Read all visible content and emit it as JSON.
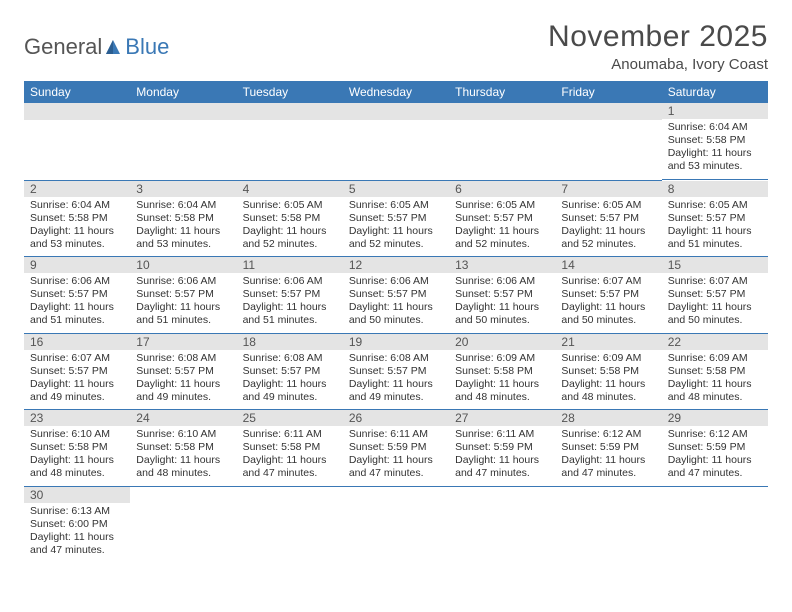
{
  "logo": {
    "textGeneral": "General",
    "textBlue": "Blue"
  },
  "title": "November 2025",
  "location": "Anoumaba, Ivory Coast",
  "dayHeaders": [
    "Sunday",
    "Monday",
    "Tuesday",
    "Wednesday",
    "Thursday",
    "Friday",
    "Saturday"
  ],
  "colors": {
    "headerBg": "#3a78b5",
    "headerText": "#ffffff",
    "dayNumBg": "#e4e4e4",
    "cellRule": "#3a78b5",
    "bodyText": "#333333",
    "titleText": "#4a4a4a"
  },
  "weeks": [
    [
      null,
      null,
      null,
      null,
      null,
      null,
      {
        "n": "1",
        "sr": "Sunrise: 6:04 AM",
        "ss": "Sunset: 5:58 PM",
        "d1": "Daylight: 11 hours",
        "d2": "and 53 minutes."
      }
    ],
    [
      {
        "n": "2",
        "sr": "Sunrise: 6:04 AM",
        "ss": "Sunset: 5:58 PM",
        "d1": "Daylight: 11 hours",
        "d2": "and 53 minutes."
      },
      {
        "n": "3",
        "sr": "Sunrise: 6:04 AM",
        "ss": "Sunset: 5:58 PM",
        "d1": "Daylight: 11 hours",
        "d2": "and 53 minutes."
      },
      {
        "n": "4",
        "sr": "Sunrise: 6:05 AM",
        "ss": "Sunset: 5:58 PM",
        "d1": "Daylight: 11 hours",
        "d2": "and 52 minutes."
      },
      {
        "n": "5",
        "sr": "Sunrise: 6:05 AM",
        "ss": "Sunset: 5:57 PM",
        "d1": "Daylight: 11 hours",
        "d2": "and 52 minutes."
      },
      {
        "n": "6",
        "sr": "Sunrise: 6:05 AM",
        "ss": "Sunset: 5:57 PM",
        "d1": "Daylight: 11 hours",
        "d2": "and 52 minutes."
      },
      {
        "n": "7",
        "sr": "Sunrise: 6:05 AM",
        "ss": "Sunset: 5:57 PM",
        "d1": "Daylight: 11 hours",
        "d2": "and 52 minutes."
      },
      {
        "n": "8",
        "sr": "Sunrise: 6:05 AM",
        "ss": "Sunset: 5:57 PM",
        "d1": "Daylight: 11 hours",
        "d2": "and 51 minutes."
      }
    ],
    [
      {
        "n": "9",
        "sr": "Sunrise: 6:06 AM",
        "ss": "Sunset: 5:57 PM",
        "d1": "Daylight: 11 hours",
        "d2": "and 51 minutes."
      },
      {
        "n": "10",
        "sr": "Sunrise: 6:06 AM",
        "ss": "Sunset: 5:57 PM",
        "d1": "Daylight: 11 hours",
        "d2": "and 51 minutes."
      },
      {
        "n": "11",
        "sr": "Sunrise: 6:06 AM",
        "ss": "Sunset: 5:57 PM",
        "d1": "Daylight: 11 hours",
        "d2": "and 51 minutes."
      },
      {
        "n": "12",
        "sr": "Sunrise: 6:06 AM",
        "ss": "Sunset: 5:57 PM",
        "d1": "Daylight: 11 hours",
        "d2": "and 50 minutes."
      },
      {
        "n": "13",
        "sr": "Sunrise: 6:06 AM",
        "ss": "Sunset: 5:57 PM",
        "d1": "Daylight: 11 hours",
        "d2": "and 50 minutes."
      },
      {
        "n": "14",
        "sr": "Sunrise: 6:07 AM",
        "ss": "Sunset: 5:57 PM",
        "d1": "Daylight: 11 hours",
        "d2": "and 50 minutes."
      },
      {
        "n": "15",
        "sr": "Sunrise: 6:07 AM",
        "ss": "Sunset: 5:57 PM",
        "d1": "Daylight: 11 hours",
        "d2": "and 50 minutes."
      }
    ],
    [
      {
        "n": "16",
        "sr": "Sunrise: 6:07 AM",
        "ss": "Sunset: 5:57 PM",
        "d1": "Daylight: 11 hours",
        "d2": "and 49 minutes."
      },
      {
        "n": "17",
        "sr": "Sunrise: 6:08 AM",
        "ss": "Sunset: 5:57 PM",
        "d1": "Daylight: 11 hours",
        "d2": "and 49 minutes."
      },
      {
        "n": "18",
        "sr": "Sunrise: 6:08 AM",
        "ss": "Sunset: 5:57 PM",
        "d1": "Daylight: 11 hours",
        "d2": "and 49 minutes."
      },
      {
        "n": "19",
        "sr": "Sunrise: 6:08 AM",
        "ss": "Sunset: 5:57 PM",
        "d1": "Daylight: 11 hours",
        "d2": "and 49 minutes."
      },
      {
        "n": "20",
        "sr": "Sunrise: 6:09 AM",
        "ss": "Sunset: 5:58 PM",
        "d1": "Daylight: 11 hours",
        "d2": "and 48 minutes."
      },
      {
        "n": "21",
        "sr": "Sunrise: 6:09 AM",
        "ss": "Sunset: 5:58 PM",
        "d1": "Daylight: 11 hours",
        "d2": "and 48 minutes."
      },
      {
        "n": "22",
        "sr": "Sunrise: 6:09 AM",
        "ss": "Sunset: 5:58 PM",
        "d1": "Daylight: 11 hours",
        "d2": "and 48 minutes."
      }
    ],
    [
      {
        "n": "23",
        "sr": "Sunrise: 6:10 AM",
        "ss": "Sunset: 5:58 PM",
        "d1": "Daylight: 11 hours",
        "d2": "and 48 minutes."
      },
      {
        "n": "24",
        "sr": "Sunrise: 6:10 AM",
        "ss": "Sunset: 5:58 PM",
        "d1": "Daylight: 11 hours",
        "d2": "and 48 minutes."
      },
      {
        "n": "25",
        "sr": "Sunrise: 6:11 AM",
        "ss": "Sunset: 5:58 PM",
        "d1": "Daylight: 11 hours",
        "d2": "and 47 minutes."
      },
      {
        "n": "26",
        "sr": "Sunrise: 6:11 AM",
        "ss": "Sunset: 5:59 PM",
        "d1": "Daylight: 11 hours",
        "d2": "and 47 minutes."
      },
      {
        "n": "27",
        "sr": "Sunrise: 6:11 AM",
        "ss": "Sunset: 5:59 PM",
        "d1": "Daylight: 11 hours",
        "d2": "and 47 minutes."
      },
      {
        "n": "28",
        "sr": "Sunrise: 6:12 AM",
        "ss": "Sunset: 5:59 PM",
        "d1": "Daylight: 11 hours",
        "d2": "and 47 minutes."
      },
      {
        "n": "29",
        "sr": "Sunrise: 6:12 AM",
        "ss": "Sunset: 5:59 PM",
        "d1": "Daylight: 11 hours",
        "d2": "and 47 minutes."
      }
    ],
    [
      {
        "n": "30",
        "sr": "Sunrise: 6:13 AM",
        "ss": "Sunset: 6:00 PM",
        "d1": "Daylight: 11 hours",
        "d2": "and 47 minutes."
      },
      null,
      null,
      null,
      null,
      null,
      null
    ]
  ]
}
